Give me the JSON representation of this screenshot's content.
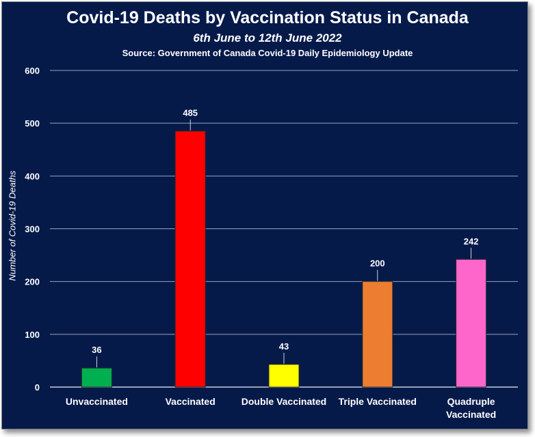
{
  "chart_data": {
    "type": "bar",
    "title": "Covid-19 Deaths by Vaccination Status in Canada",
    "subtitle": "6th June to 12th June 2022",
    "source": "Source: Government of Canada  Covid-19 Daily Epidemiology Update",
    "ylabel": "Number of Covid-19 Deaths",
    "xlabel": "",
    "ylim": [
      0,
      600
    ],
    "yticks": [
      0,
      100,
      200,
      300,
      400,
      500,
      600
    ],
    "grid": true,
    "categories": [
      [
        "Unvaccinated"
      ],
      [
        "Vaccinated"
      ],
      [
        "Double Vaccinated"
      ],
      [
        "Triple Vaccinated"
      ],
      [
        "Quadruple",
        "Vaccinated"
      ]
    ],
    "values": [
      36,
      485,
      43,
      200,
      242
    ],
    "colors": [
      "#00b050",
      "#ff0000",
      "#ffff00",
      "#ed7d31",
      "#ff66cc"
    ],
    "background": "#061a4a"
  }
}
